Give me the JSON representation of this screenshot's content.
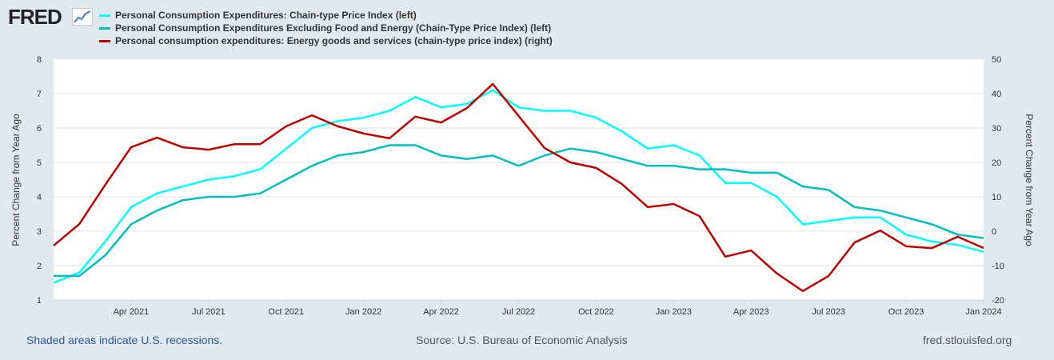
{
  "logo": "FRED",
  "footer": {
    "left": "Shaded areas indicate U.S. recessions.",
    "center": "Source: U.S. Bureau of Economic Analysis",
    "right": "fred.stlouisfed.org"
  },
  "chart_data": {
    "type": "line",
    "x": [
      "2021-01",
      "2021-02",
      "2021-03",
      "2021-04",
      "2021-05",
      "2021-06",
      "2021-07",
      "2021-08",
      "2021-09",
      "2021-10",
      "2021-11",
      "2021-12",
      "2022-01",
      "2022-02",
      "2022-03",
      "2022-04",
      "2022-05",
      "2022-06",
      "2022-07",
      "2022-08",
      "2022-09",
      "2022-10",
      "2022-11",
      "2022-12",
      "2023-01",
      "2023-02",
      "2023-03",
      "2023-04",
      "2023-05",
      "2023-06",
      "2023-07",
      "2023-08",
      "2023-09",
      "2023-10",
      "2023-11",
      "2023-12",
      "2024-01"
    ],
    "xticks": [
      {
        "label": "Apr 2021",
        "i": 3
      },
      {
        "label": "Jul 2021",
        "i": 6
      },
      {
        "label": "Oct 2021",
        "i": 9
      },
      {
        "label": "Jan 2022",
        "i": 12
      },
      {
        "label": "Apr 2022",
        "i": 15
      },
      {
        "label": "Jul 2022",
        "i": 18
      },
      {
        "label": "Oct 2022",
        "i": 21
      },
      {
        "label": "Jan 2023",
        "i": 24
      },
      {
        "label": "Apr 2023",
        "i": 27
      },
      {
        "label": "Jul 2023",
        "i": 30
      },
      {
        "label": "Oct 2023",
        "i": 33
      },
      {
        "label": "Jan 2024",
        "i": 36
      }
    ],
    "ylabel": "Percent Change from Year Ago",
    "y2label": "Percent Change from Year Ago",
    "ylim": [
      1,
      8
    ],
    "yticks": [
      "1",
      "2",
      "3",
      "4",
      "5",
      "6",
      "7",
      "8"
    ],
    "y2lim": [
      -20,
      50
    ],
    "y2ticks": [
      "-20",
      "-10",
      "0",
      "10",
      "20",
      "30",
      "40",
      "50"
    ],
    "grid": true,
    "legend": "top",
    "series": [
      {
        "name": "Personal Consumption Expenditures: Chain-type Price Index (left)",
        "axis": "left",
        "color": "#00ffff",
        "values": [
          1.5,
          1.8,
          2.7,
          3.7,
          4.1,
          4.3,
          4.5,
          4.6,
          4.8,
          5.4,
          6.0,
          6.2,
          6.3,
          6.5,
          6.9,
          6.6,
          6.7,
          7.1,
          6.6,
          6.5,
          6.5,
          6.3,
          5.9,
          5.4,
          5.5,
          5.2,
          4.4,
          4.4,
          4.0,
          3.2,
          3.3,
          3.4,
          3.4,
          2.9,
          2.7,
          2.6,
          2.4
        ]
      },
      {
        "name": "Personal Consumption Expenditures Excluding Food and Energy (Chain-Type Price Index) (left)",
        "axis": "left",
        "color": "#00bfbf",
        "values": [
          1.7,
          1.7,
          2.3,
          3.2,
          3.6,
          3.9,
          4.0,
          4.0,
          4.1,
          4.5,
          4.9,
          5.2,
          5.3,
          5.5,
          5.5,
          5.2,
          5.1,
          5.2,
          4.9,
          5.2,
          5.4,
          5.3,
          5.1,
          4.9,
          4.9,
          4.8,
          4.8,
          4.7,
          4.7,
          4.3,
          4.2,
          3.7,
          3.6,
          3.4,
          3.2,
          2.9,
          2.8
        ]
      },
      {
        "name": "Personal consumption expenditures: Energy goods and services (chain-type price index) (right)",
        "axis": "right",
        "color": "#c00000",
        "values": [
          -4.2,
          2.1,
          13.5,
          24.4,
          27.2,
          24.4,
          23.7,
          25.3,
          25.3,
          30.5,
          33.7,
          30.5,
          28.4,
          27.0,
          33.3,
          31.6,
          35.8,
          42.8,
          33.5,
          24.2,
          20.0,
          18.4,
          13.7,
          7.0,
          7.9,
          4.4,
          -7.4,
          -5.6,
          -12.3,
          -17.4,
          -13.0,
          -3.3,
          0.2,
          -4.4,
          -4.9,
          -1.6,
          -4.9
        ]
      }
    ]
  }
}
